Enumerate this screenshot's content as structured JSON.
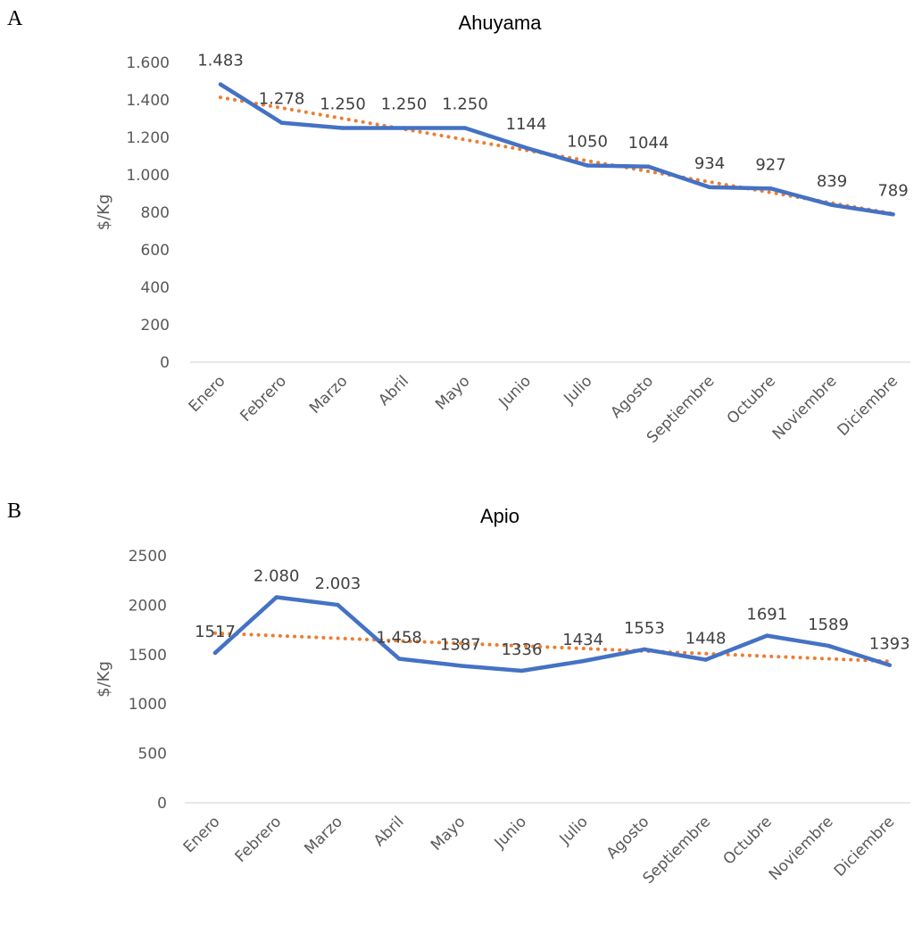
{
  "panels": [
    "A",
    "B"
  ],
  "colors": {
    "series": "#4472C4",
    "trend": "#ED7D31",
    "axis": "#D9D9D9",
    "text": "#595959"
  },
  "chart_data": [
    {
      "type": "line",
      "title": "Ahuyama",
      "ylabel": "$/Kg",
      "xlabel": "",
      "categories": [
        "Enero",
        "Febrero",
        "Marzo",
        "Abril",
        "Mayo",
        "Junio",
        "Julio",
        "Agosto",
        "Septiembre",
        "Octubre",
        "Noviembre",
        "Diciembre"
      ],
      "values": [
        1483,
        1278,
        1250,
        1250,
        1250,
        1144,
        1050,
        1044,
        934,
        927,
        839,
        789
      ],
      "data_labels": [
        "1.483",
        "1.278",
        "1.250",
        "1.250",
        "1.250",
        "1144",
        "1050",
        "1044",
        "934",
        "927",
        "839",
        "789"
      ],
      "trendline": "linear, dotted",
      "ylim": [
        0,
        1600
      ],
      "yticks": [
        0,
        200,
        400,
        600,
        800,
        1000,
        1200,
        1400,
        1600
      ],
      "ytick_labels": [
        "0",
        "200",
        "400",
        "600",
        "800",
        "1.000",
        "1.200",
        "1.400",
        "1.600"
      ],
      "grid": false,
      "legend": "none"
    },
    {
      "type": "line",
      "title": "Apio",
      "ylabel": "$/Kg",
      "xlabel": "",
      "categories": [
        "Enero",
        "Febrero",
        "Marzo",
        "Abril",
        "Mayo",
        "Junio",
        "Julio",
        "Agosto",
        "Septiembre",
        "Octubre",
        "Noviembre",
        "Diciembre"
      ],
      "values": [
        1517,
        2080,
        2003,
        1458,
        1387,
        1336,
        1434,
        1553,
        1448,
        1691,
        1589,
        1393
      ],
      "data_labels": [
        "1517",
        "2.080",
        "2.003",
        "1.458",
        "1387",
        "1336",
        "1434",
        "1553",
        "1448",
        "1691",
        "1589",
        "1393"
      ],
      "trendline": "linear, dotted",
      "ylim": [
        0,
        2500
      ],
      "yticks": [
        0,
        500,
        1000,
        1500,
        2000,
        2500
      ],
      "ytick_labels": [
        "0",
        "500",
        "1000",
        "1500",
        "2000",
        "2500"
      ],
      "grid": false,
      "legend": "none"
    }
  ]
}
